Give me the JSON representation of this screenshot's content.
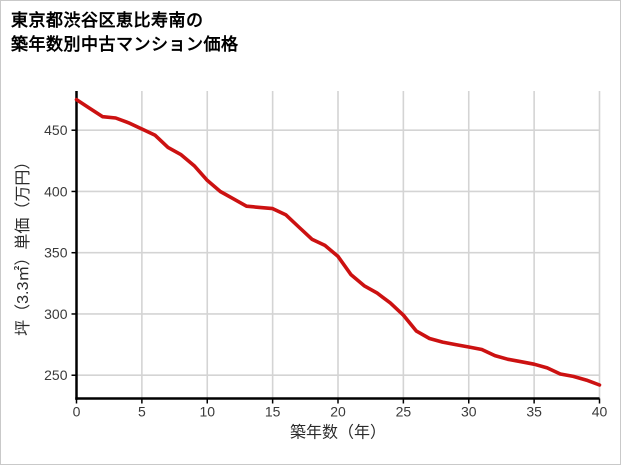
{
  "page": {
    "background": "#ffffff",
    "border_color": "#c9c9c9"
  },
  "title": {
    "line1": "東京都渋谷区恵比寿南の",
    "line2": "築年数別中古マンション価格"
  },
  "colors": {
    "line": "#cc1111",
    "grid": "#d4d4d4",
    "axis": "#000000",
    "tick_text": "#3a3a3a",
    "axis_label_text": "#2b2b2b"
  },
  "chart_data": {
    "type": "line",
    "title": "東京都渋谷区恵比寿南の築年数別中古マンション価格",
    "xlabel": "築年数（年）",
    "ylabel": "坪（3.3㎡）単価（万円）",
    "x": [
      0,
      1,
      2,
      3,
      4,
      5,
      6,
      7,
      8,
      9,
      10,
      11,
      12,
      13,
      14,
      15,
      16,
      17,
      18,
      19,
      20,
      21,
      22,
      23,
      24,
      25,
      26,
      27,
      28,
      29,
      30,
      31,
      32,
      33,
      34,
      35,
      36,
      37,
      38,
      39,
      40
    ],
    "values": [
      475,
      468,
      461,
      460,
      456,
      451,
      446,
      436,
      430,
      421,
      409,
      400,
      394,
      388,
      387,
      386,
      381,
      371,
      361,
      356,
      347,
      332,
      323,
      317,
      309,
      299,
      286,
      280,
      277,
      275,
      273,
      271,
      266,
      263,
      261,
      259,
      256,
      251,
      249,
      246,
      242
    ],
    "x_ticks": [
      0,
      5,
      10,
      15,
      20,
      25,
      30,
      35,
      40
    ],
    "y_ticks": [
      250,
      300,
      350,
      400,
      450
    ],
    "xlim": [
      0,
      40
    ],
    "ylim": [
      231,
      482
    ],
    "grid": true,
    "legend": "none",
    "line_color": "#cc1111"
  }
}
